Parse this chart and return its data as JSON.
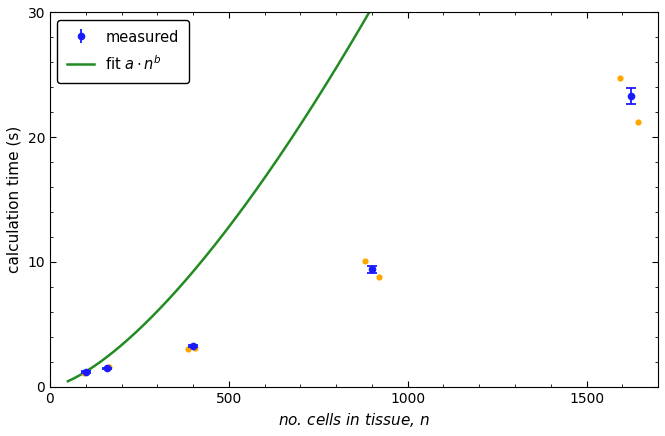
{
  "measured_x": [
    100,
    160,
    400,
    900,
    1625
  ],
  "measured_y": [
    1.18,
    1.48,
    3.25,
    9.4,
    23.3
  ],
  "measured_yerr": [
    0.05,
    0.05,
    0.1,
    0.3,
    0.65
  ],
  "scatter_x": [
    95,
    165,
    385,
    405,
    880,
    920,
    1595,
    1645
  ],
  "scatter_y": [
    1.13,
    1.55,
    3.05,
    3.1,
    10.1,
    8.75,
    24.75,
    21.2
  ],
  "fit_a": 0.00138,
  "fit_b": 1.47,
  "fit_x_start": 50,
  "fit_x_end": 1700,
  "xlim": [
    0,
    1700
  ],
  "ylim": [
    0,
    30
  ],
  "xticks": [
    0,
    500,
    1000,
    1500
  ],
  "yticks": [
    0,
    10,
    20,
    30
  ],
  "xlabel": "no. cells in tissue, $n$",
  "ylabel": "calculation time (s)",
  "line_color": "#228B22",
  "marker_color_blue": "#1a1aff",
  "marker_color_orange": "#FFA500",
  "legend_measured": "measured",
  "legend_fit": "fit $a \\cdot n^b$",
  "bg_color": "#FFFFFF",
  "figsize": [
    6.65,
    4.36
  ],
  "dpi": 100
}
